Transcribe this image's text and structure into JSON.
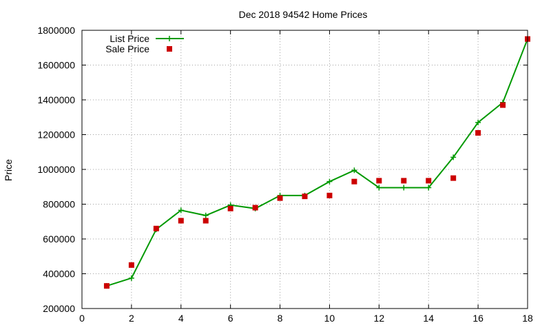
{
  "chart_data": {
    "type": "line",
    "title": "Dec 2018 94542 Home Prices",
    "xlabel": "",
    "ylabel": "Price",
    "xlim": [
      0,
      18
    ],
    "ylim": [
      200000,
      1800000
    ],
    "xticks": [
      0,
      2,
      4,
      6,
      8,
      10,
      12,
      14,
      16,
      18
    ],
    "yticks": [
      200000,
      400000,
      600000,
      800000,
      1000000,
      1200000,
      1400000,
      1600000,
      1800000
    ],
    "grid": true,
    "legend_position": "top-left",
    "series": [
      {
        "name": "List Price",
        "style": "line-with-plus-markers",
        "color": "#009900",
        "points": [
          [
            1,
            330000
          ],
          [
            2,
            375000
          ],
          [
            3,
            655000
          ],
          [
            4,
            765000
          ],
          [
            5,
            735000
          ],
          [
            6,
            795000
          ],
          [
            7,
            775000
          ],
          [
            8,
            850000
          ],
          [
            9,
            850000
          ],
          [
            10,
            930000
          ],
          [
            11,
            995000
          ],
          [
            12,
            895000
          ],
          [
            13,
            895000
          ],
          [
            14,
            895000
          ],
          [
            15,
            1070000
          ],
          [
            16,
            1270000
          ],
          [
            17,
            1385000
          ],
          [
            18,
            1750000
          ]
        ]
      },
      {
        "name": "Sale Price",
        "style": "square-markers",
        "color": "#cc0000",
        "points": [
          [
            1,
            330000
          ],
          [
            2,
            450000
          ],
          [
            3,
            660000
          ],
          [
            4,
            705000
          ],
          [
            5,
            705000
          ],
          [
            6,
            775000
          ],
          [
            7,
            780000
          ],
          [
            8,
            835000
          ],
          [
            9,
            845000
          ],
          [
            10,
            850000
          ],
          [
            11,
            930000
          ],
          [
            12,
            935000
          ],
          [
            13,
            935000
          ],
          [
            14,
            935000
          ],
          [
            15,
            950000
          ],
          [
            16,
            1210000
          ],
          [
            17,
            1370000
          ],
          [
            18,
            1750000
          ]
        ]
      }
    ]
  }
}
